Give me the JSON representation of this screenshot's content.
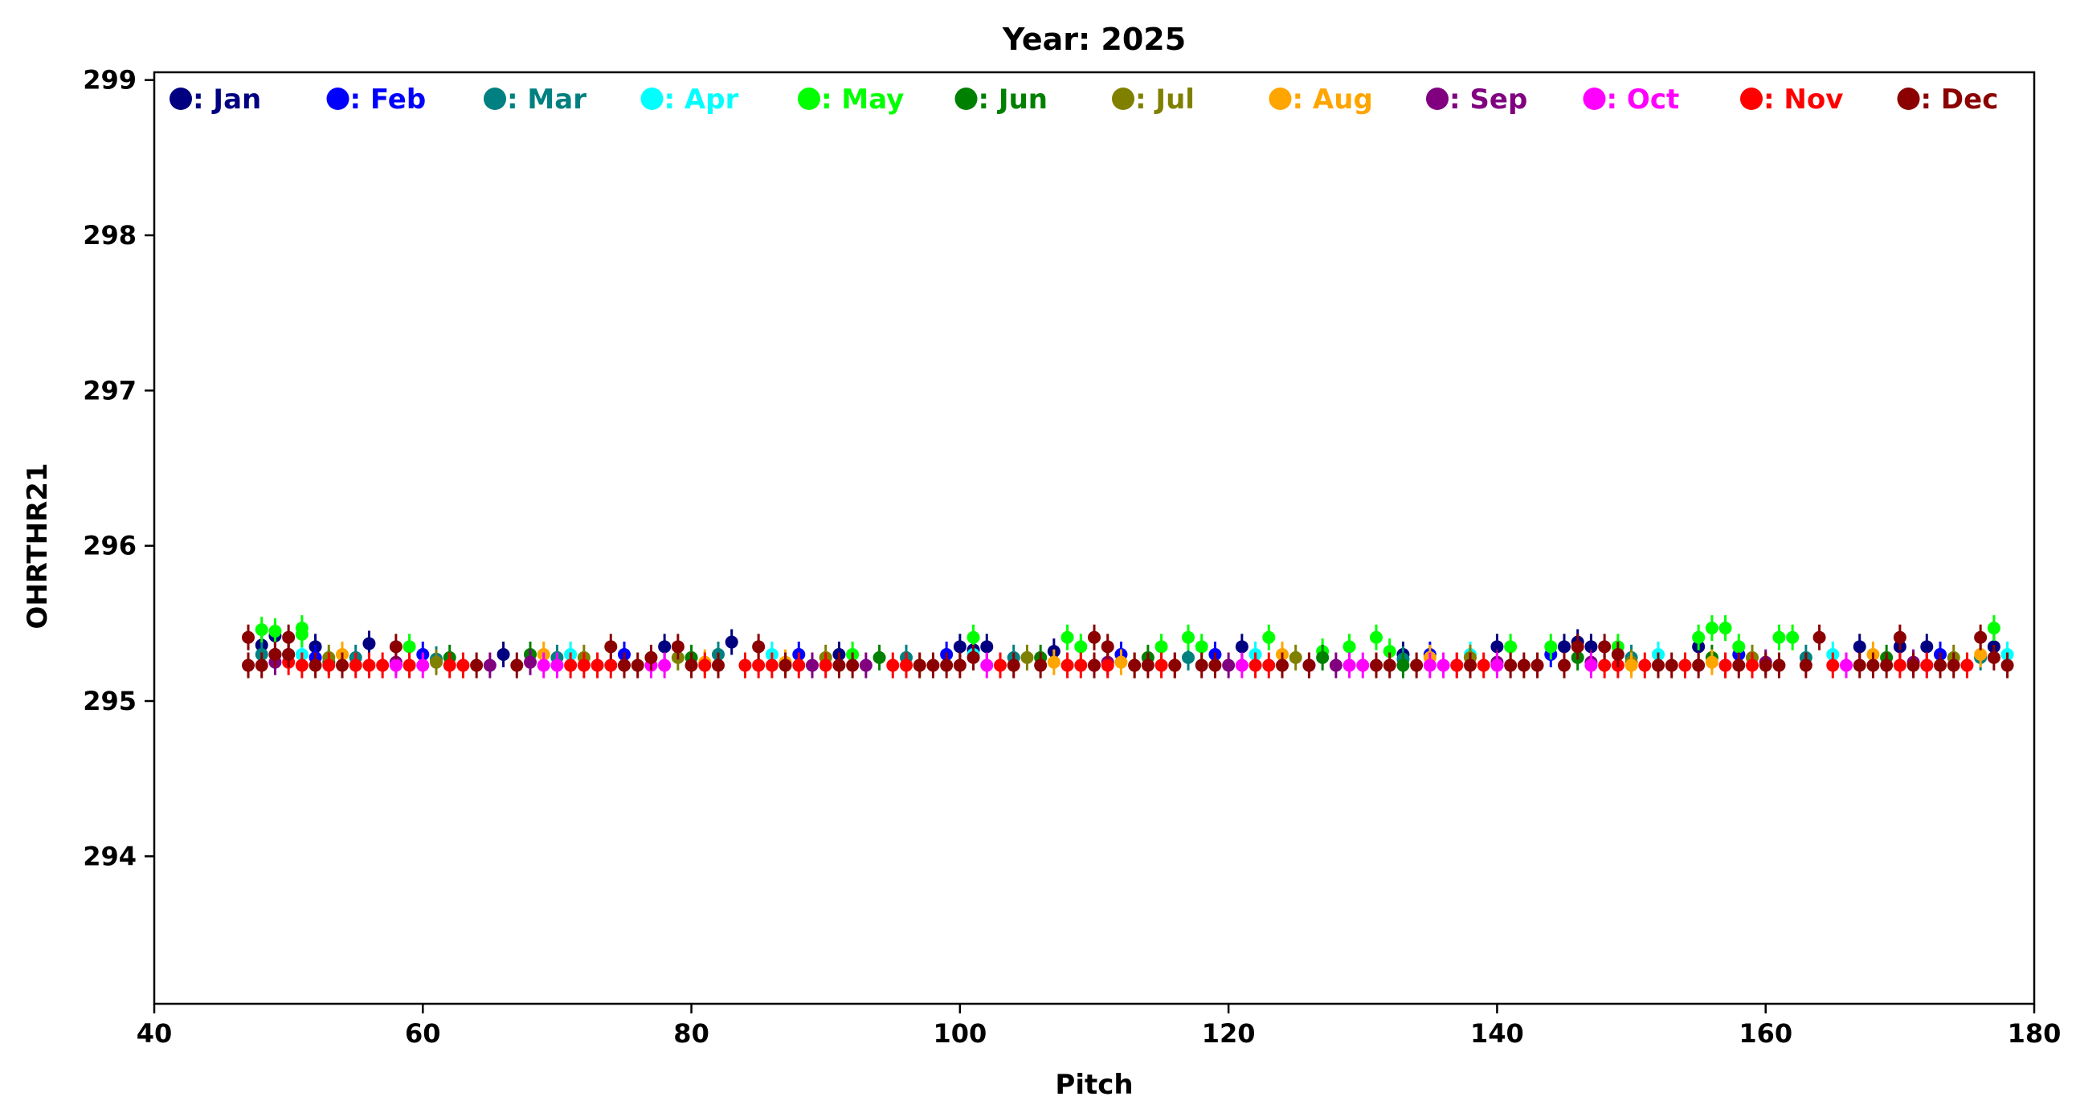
{
  "chart_data": {
    "type": "scatter",
    "title": "Year: 2025",
    "xlabel": "Pitch",
    "ylabel": "OHRTHR21",
    "xlim": [
      40,
      180
    ],
    "ylim": [
      293.05,
      299.05
    ],
    "xticks": [
      40,
      60,
      80,
      100,
      120,
      140,
      160,
      180
    ],
    "yticks": [
      294,
      295,
      296,
      297,
      298,
      299
    ],
    "grid": false,
    "legend_position": "top",
    "error_bars": true,
    "series": [
      {
        "name": ": Jan",
        "color": "#000080",
        "points": [
          [
            48,
            295.36
          ],
          [
            49,
            295.42
          ],
          [
            50,
            295.3
          ],
          [
            52,
            295.35
          ],
          [
            56,
            295.37
          ],
          [
            66,
            295.3
          ],
          [
            78,
            295.35
          ],
          [
            83,
            295.38
          ],
          [
            91,
            295.3
          ],
          [
            100,
            295.35
          ],
          [
            101,
            295.33
          ],
          [
            102,
            295.35
          ],
          [
            107,
            295.32
          ],
          [
            121,
            295.35
          ],
          [
            133,
            295.3
          ],
          [
            140,
            295.35
          ],
          [
            145,
            295.35
          ],
          [
            146,
            295.38
          ],
          [
            147,
            295.35
          ],
          [
            155,
            295.35
          ],
          [
            167,
            295.35
          ],
          [
            170,
            295.35
          ],
          [
            172,
            295.35
          ],
          [
            177,
            295.35
          ]
        ]
      },
      {
        "name": ": Feb",
        "color": "#0000ff",
        "points": [
          [
            49,
            295.3
          ],
          [
            52,
            295.28
          ],
          [
            60,
            295.3
          ],
          [
            75,
            295.3
          ],
          [
            88,
            295.3
          ],
          [
            99,
            295.3
          ],
          [
            112,
            295.3
          ],
          [
            119,
            295.3
          ],
          [
            135,
            295.3
          ],
          [
            144,
            295.3
          ],
          [
            158,
            295.3
          ],
          [
            173,
            295.3
          ]
        ]
      },
      {
        "name": ": Mar",
        "color": "#008080",
        "points": [
          [
            48,
            295.3
          ],
          [
            55,
            295.28
          ],
          [
            61,
            295.27
          ],
          [
            70,
            295.28
          ],
          [
            82,
            295.3
          ],
          [
            96,
            295.28
          ],
          [
            104,
            295.28
          ],
          [
            117,
            295.28
          ],
          [
            133,
            295.27
          ],
          [
            150,
            295.28
          ],
          [
            163,
            295.28
          ],
          [
            176,
            295.28
          ]
        ]
      },
      {
        "name": ": Apr",
        "color": "#00ffff",
        "points": [
          [
            51,
            295.3
          ],
          [
            71,
            295.3
          ],
          [
            86,
            295.3
          ],
          [
            101,
            295.3
          ],
          [
            122,
            295.3
          ],
          [
            138,
            295.3
          ],
          [
            152,
            295.3
          ],
          [
            165,
            295.3
          ],
          [
            178,
            295.3
          ]
        ]
      },
      {
        "name": ": May",
        "color": "#00ff00",
        "points": [
          [
            48,
            295.46
          ],
          [
            49,
            295.45
          ],
          [
            51,
            295.47
          ],
          [
            51,
            295.43
          ],
          [
            59,
            295.35
          ],
          [
            92,
            295.3
          ],
          [
            101,
            295.41
          ],
          [
            108,
            295.41
          ],
          [
            109,
            295.35
          ],
          [
            115,
            295.35
          ],
          [
            117,
            295.41
          ],
          [
            118,
            295.35
          ],
          [
            123,
            295.41
          ],
          [
            127,
            295.32
          ],
          [
            129,
            295.35
          ],
          [
            131,
            295.41
          ],
          [
            132,
            295.32
          ],
          [
            141,
            295.35
          ],
          [
            144,
            295.35
          ],
          [
            149,
            295.35
          ],
          [
            155,
            295.41
          ],
          [
            156,
            295.47
          ],
          [
            157,
            295.47
          ],
          [
            158,
            295.35
          ],
          [
            161,
            295.41
          ],
          [
            162,
            295.41
          ],
          [
            177,
            295.47
          ]
        ]
      },
      {
        "name": ": Jun",
        "color": "#008000",
        "points": [
          [
            53,
            295.25
          ],
          [
            62,
            295.28
          ],
          [
            68,
            295.3
          ],
          [
            80,
            295.28
          ],
          [
            94,
            295.28
          ],
          [
            106,
            295.28
          ],
          [
            114,
            295.28
          ],
          [
            127,
            295.28
          ],
          [
            133,
            295.23
          ],
          [
            146,
            295.28
          ],
          [
            156,
            295.28
          ],
          [
            169,
            295.28
          ]
        ]
      },
      {
        "name": ": Jul",
        "color": "#808000",
        "points": [
          [
            53,
            295.28
          ],
          [
            61,
            295.25
          ],
          [
            72,
            295.28
          ],
          [
            79,
            295.28
          ],
          [
            90,
            295.28
          ],
          [
            105,
            295.28
          ],
          [
            113,
            295.23
          ],
          [
            125,
            295.28
          ],
          [
            138,
            295.28
          ],
          [
            150,
            295.25
          ],
          [
            159,
            295.28
          ],
          [
            174,
            295.28
          ]
        ]
      },
      {
        "name": ": Aug",
        "color": "#ffa500",
        "points": [
          [
            54,
            295.3
          ],
          [
            69,
            295.3
          ],
          [
            81,
            295.25
          ],
          [
            87,
            295.25
          ],
          [
            97,
            295.23
          ],
          [
            107,
            295.25
          ],
          [
            112,
            295.25
          ],
          [
            124,
            295.3
          ],
          [
            135,
            295.28
          ],
          [
            150,
            295.23
          ],
          [
            156,
            295.25
          ],
          [
            168,
            295.3
          ],
          [
            176,
            295.3
          ]
        ]
      },
      {
        "name": ": Sep",
        "color": "#800080",
        "points": [
          [
            49,
            295.25
          ],
          [
            58,
            295.25
          ],
          [
            65,
            295.23
          ],
          [
            68,
            295.25
          ],
          [
            89,
            295.23
          ],
          [
            93,
            295.23
          ],
          [
            111,
            295.25
          ],
          [
            120,
            295.23
          ],
          [
            126,
            295.23
          ],
          [
            128,
            295.23
          ],
          [
            140,
            295.25
          ],
          [
            147,
            295.25
          ],
          [
            160,
            295.25
          ],
          [
            171,
            295.25
          ]
        ]
      },
      {
        "name": ": Oct",
        "color": "#ff00ff",
        "points": [
          [
            58,
            295.23
          ],
          [
            60,
            295.23
          ],
          [
            69,
            295.23
          ],
          [
            70,
            295.23
          ],
          [
            77,
            295.23
          ],
          [
            78,
            295.23
          ],
          [
            102,
            295.23
          ],
          [
            110,
            295.23
          ],
          [
            121,
            295.23
          ],
          [
            129,
            295.23
          ],
          [
            130,
            295.23
          ],
          [
            135,
            295.23
          ],
          [
            136,
            295.23
          ],
          [
            137,
            295.23
          ],
          [
            140,
            295.23
          ],
          [
            147,
            295.23
          ],
          [
            157,
            295.23
          ],
          [
            166,
            295.23
          ],
          [
            172,
            295.23
          ]
        ]
      },
      {
        "name": ": Nov",
        "color": "#ff0000",
        "points": [
          [
            50,
            295.25
          ],
          [
            51,
            295.23
          ],
          [
            53,
            295.23
          ],
          [
            55,
            295.23
          ],
          [
            56,
            295.23
          ],
          [
            57,
            295.23
          ],
          [
            59,
            295.23
          ],
          [
            62,
            295.23
          ],
          [
            63,
            295.23
          ],
          [
            71,
            295.23
          ],
          [
            72,
            295.23
          ],
          [
            73,
            295.23
          ],
          [
            74,
            295.23
          ],
          [
            81,
            295.23
          ],
          [
            84,
            295.23
          ],
          [
            85,
            295.23
          ],
          [
            86,
            295.23
          ],
          [
            88,
            295.23
          ],
          [
            90,
            295.23
          ],
          [
            95,
            295.23
          ],
          [
            96,
            295.23
          ],
          [
            103,
            295.23
          ],
          [
            108,
            295.23
          ],
          [
            109,
            295.23
          ],
          [
            111,
            295.23
          ],
          [
            115,
            295.23
          ],
          [
            116,
            295.23
          ],
          [
            122,
            295.23
          ],
          [
            123,
            295.23
          ],
          [
            137,
            295.23
          ],
          [
            139,
            295.23
          ],
          [
            148,
            295.23
          ],
          [
            149,
            295.23
          ],
          [
            151,
            295.23
          ],
          [
            154,
            295.23
          ],
          [
            157,
            295.23
          ],
          [
            159,
            295.23
          ],
          [
            165,
            295.23
          ],
          [
            170,
            295.23
          ],
          [
            172,
            295.23
          ],
          [
            175,
            295.23
          ]
        ]
      },
      {
        "name": ": Dec",
        "color": "#8b0000",
        "points": [
          [
            47,
            295.41
          ],
          [
            47,
            295.23
          ],
          [
            48,
            295.23
          ],
          [
            49,
            295.3
          ],
          [
            50,
            295.41
          ],
          [
            50,
            295.3
          ],
          [
            52,
            295.23
          ],
          [
            54,
            295.23
          ],
          [
            58,
            295.35
          ],
          [
            64,
            295.23
          ],
          [
            67,
            295.23
          ],
          [
            74,
            295.35
          ],
          [
            75,
            295.23
          ],
          [
            76,
            295.23
          ],
          [
            77,
            295.28
          ],
          [
            79,
            295.35
          ],
          [
            80,
            295.23
          ],
          [
            82,
            295.23
          ],
          [
            85,
            295.35
          ],
          [
            87,
            295.23
          ],
          [
            91,
            295.23
          ],
          [
            92,
            295.23
          ],
          [
            97,
            295.23
          ],
          [
            98,
            295.23
          ],
          [
            99,
            295.23
          ],
          [
            100,
            295.23
          ],
          [
            101,
            295.28
          ],
          [
            104,
            295.23
          ],
          [
            106,
            295.23
          ],
          [
            110,
            295.41
          ],
          [
            110,
            295.23
          ],
          [
            111,
            295.35
          ],
          [
            113,
            295.23
          ],
          [
            114,
            295.23
          ],
          [
            116,
            295.23
          ],
          [
            118,
            295.23
          ],
          [
            119,
            295.23
          ],
          [
            124,
            295.23
          ],
          [
            126,
            295.23
          ],
          [
            131,
            295.23
          ],
          [
            132,
            295.23
          ],
          [
            134,
            295.23
          ],
          [
            138,
            295.23
          ],
          [
            141,
            295.23
          ],
          [
            142,
            295.23
          ],
          [
            143,
            295.23
          ],
          [
            145,
            295.23
          ],
          [
            146,
            295.35
          ],
          [
            148,
            295.35
          ],
          [
            149,
            295.3
          ],
          [
            152,
            295.23
          ],
          [
            153,
            295.23
          ],
          [
            155,
            295.23
          ],
          [
            158,
            295.23
          ],
          [
            160,
            295.23
          ],
          [
            161,
            295.23
          ],
          [
            163,
            295.23
          ],
          [
            164,
            295.41
          ],
          [
            167,
            295.23
          ],
          [
            168,
            295.23
          ],
          [
            169,
            295.23
          ],
          [
            170,
            295.41
          ],
          [
            171,
            295.23
          ],
          [
            173,
            295.23
          ],
          [
            174,
            295.23
          ],
          [
            176,
            295.41
          ],
          [
            177,
            295.28
          ],
          [
            178,
            295.23
          ]
        ]
      }
    ]
  }
}
